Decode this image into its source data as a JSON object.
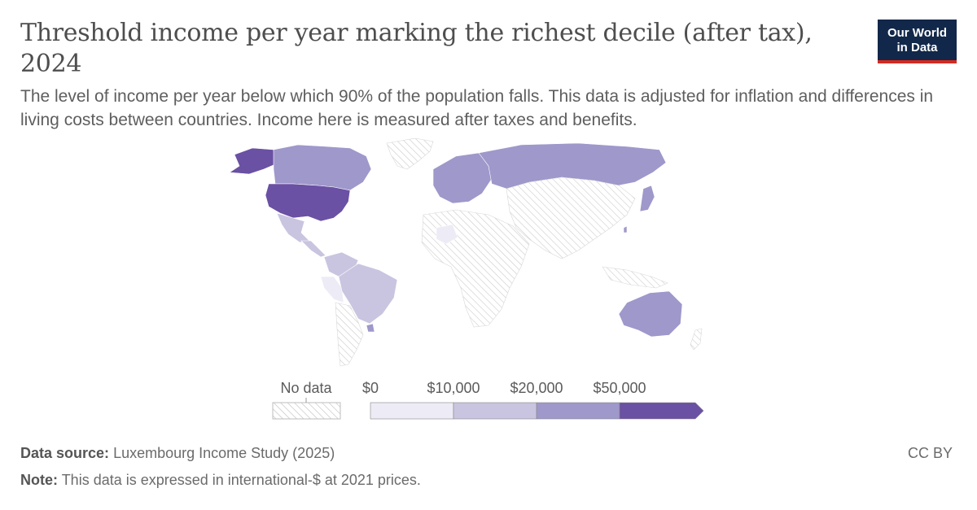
{
  "header": {
    "title": "Threshold income per year marking the richest decile (after tax), 2024",
    "subtitle": "The level of income per year below which 90% of the population falls. This data is adjusted for inflation and differences in living costs between countries. Income here is measured after taxes and benefits."
  },
  "logo": {
    "line1": "Our World",
    "line2": "in Data"
  },
  "legend": {
    "no_data_label": "No data",
    "bins": [
      {
        "label": "$0",
        "color": "#edebf5"
      },
      {
        "label": "$10,000",
        "color": "#c9c5e0"
      },
      {
        "label": "$20,000",
        "color": "#9e98cb"
      },
      {
        "label": "$50,000",
        "color": "#6a51a3"
      }
    ]
  },
  "colors": {
    "no_data_hatch": "#c8c8c8",
    "bin_1": "#edebf5",
    "bin_2": "#c9c5e0",
    "bin_3": "#9e98cb",
    "bin_4": "#6a51a3"
  },
  "footer": {
    "source_label": "Data source:",
    "source_text": "Luxembourg Income Study (2025)",
    "note_label": "Note:",
    "note_text": "This data is expressed in international-$ at 2021 prices.",
    "license": "CC BY"
  }
}
